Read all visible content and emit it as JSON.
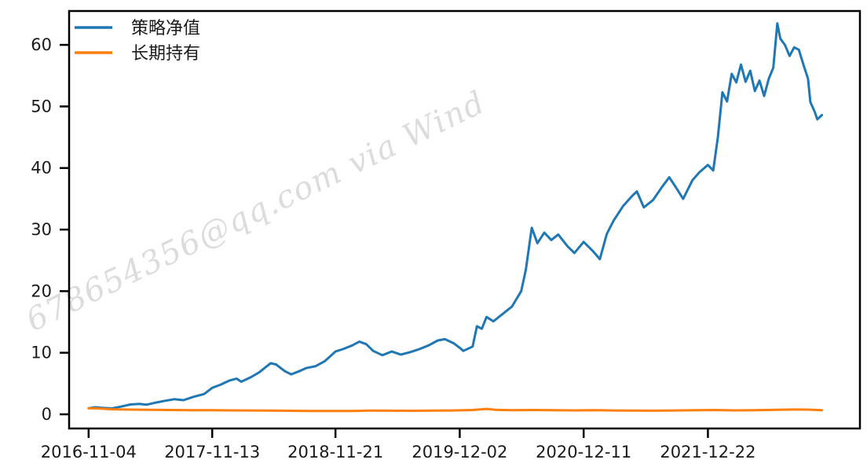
{
  "watermark": "678654356@qq.com via Wind",
  "background": "#ffffff",
  "frame_color": "#000000",
  "chart_data": {
    "type": "line",
    "title": "",
    "grid": false,
    "legend_position": "upper-left",
    "x_axis": {
      "tick_labels": [
        "2016-11-04",
        "2017-11-13",
        "2018-11-21",
        "2019-12-02",
        "2020-12-11",
        "2021-12-22"
      ],
      "lim": [
        "2016-09-06",
        "2023-03-27"
      ]
    },
    "y_axis": {
      "ticks": [
        0,
        10,
        20,
        30,
        40,
        50,
        60
      ],
      "lim": [
        -2.3,
        65.5
      ]
    },
    "legend": [
      {
        "name": "策略净值",
        "color": "#1f77b4"
      },
      {
        "name": "长期持有",
        "color": "#ff7f0e"
      }
    ],
    "series": [
      {
        "name": "策略净值",
        "color": "#1f77b4",
        "points": [
          [
            "2016-11-04",
            1.0
          ],
          [
            "2016-11-25",
            1.15
          ],
          [
            "2016-12-16",
            1.05
          ],
          [
            "2017-01-13",
            0.95
          ],
          [
            "2017-02-10",
            1.25
          ],
          [
            "2017-03-10",
            1.6
          ],
          [
            "2017-04-07",
            1.7
          ],
          [
            "2017-04-28",
            1.55
          ],
          [
            "2017-05-26",
            1.9
          ],
          [
            "2017-06-23",
            2.2
          ],
          [
            "2017-07-21",
            2.45
          ],
          [
            "2017-08-18",
            2.3
          ],
          [
            "2017-09-15",
            2.8
          ],
          [
            "2017-10-20",
            3.3
          ],
          [
            "2017-11-13",
            4.3
          ],
          [
            "2017-12-08",
            4.8
          ],
          [
            "2018-01-05",
            5.5
          ],
          [
            "2018-01-26",
            5.8
          ],
          [
            "2018-02-09",
            5.3
          ],
          [
            "2018-03-09",
            6.0
          ],
          [
            "2018-04-04",
            6.8
          ],
          [
            "2018-04-27",
            7.8
          ],
          [
            "2018-05-09",
            8.3
          ],
          [
            "2018-05-25",
            8.1
          ],
          [
            "2018-06-21",
            7.0
          ],
          [
            "2018-07-10",
            6.5
          ],
          [
            "2018-08-03",
            7.0
          ],
          [
            "2018-08-24",
            7.5
          ],
          [
            "2018-09-21",
            7.8
          ],
          [
            "2018-10-19",
            8.6
          ],
          [
            "2018-11-21",
            10.2
          ],
          [
            "2018-12-14",
            10.6
          ],
          [
            "2019-01-11",
            11.2
          ],
          [
            "2019-02-01",
            11.8
          ],
          [
            "2019-02-22",
            11.4
          ],
          [
            "2019-03-15",
            10.3
          ],
          [
            "2019-04-12",
            9.6
          ],
          [
            "2019-05-10",
            10.2
          ],
          [
            "2019-06-07",
            9.7
          ],
          [
            "2019-07-05",
            10.1
          ],
          [
            "2019-08-02",
            10.6
          ],
          [
            "2019-08-30",
            11.2
          ],
          [
            "2019-09-27",
            12.0
          ],
          [
            "2019-10-18",
            12.2
          ],
          [
            "2019-11-15",
            11.5
          ],
          [
            "2019-12-02",
            10.8
          ],
          [
            "2019-12-13",
            10.3
          ],
          [
            "2020-01-10",
            11.0
          ],
          [
            "2020-01-23",
            14.3
          ],
          [
            "2020-02-07",
            13.9
          ],
          [
            "2020-02-21",
            15.8
          ],
          [
            "2020-03-13",
            15.1
          ],
          [
            "2020-04-10",
            16.3
          ],
          [
            "2020-05-08",
            17.5
          ],
          [
            "2020-06-05",
            20.0
          ],
          [
            "2020-06-19",
            23.5
          ],
          [
            "2020-07-07",
            30.3
          ],
          [
            "2020-07-24",
            27.8
          ],
          [
            "2020-08-14",
            29.5
          ],
          [
            "2020-09-04",
            28.3
          ],
          [
            "2020-09-25",
            29.2
          ],
          [
            "2020-10-23",
            27.3
          ],
          [
            "2020-11-13",
            26.2
          ],
          [
            "2020-12-11",
            28.0
          ],
          [
            "2021-01-08",
            26.5
          ],
          [
            "2021-01-29",
            25.2
          ],
          [
            "2021-02-19",
            29.3
          ],
          [
            "2021-03-12",
            31.5
          ],
          [
            "2021-04-09",
            33.8
          ],
          [
            "2021-05-07",
            35.5
          ],
          [
            "2021-05-21",
            36.2
          ],
          [
            "2021-06-11",
            33.6
          ],
          [
            "2021-07-09",
            34.8
          ],
          [
            "2021-08-06",
            37.0
          ],
          [
            "2021-08-27",
            38.5
          ],
          [
            "2021-09-17",
            36.8
          ],
          [
            "2021-10-08",
            35.0
          ],
          [
            "2021-11-05",
            38.0
          ],
          [
            "2021-11-26",
            39.3
          ],
          [
            "2021-12-22",
            40.5
          ],
          [
            "2022-01-07",
            39.6
          ],
          [
            "2022-01-21",
            45.0
          ],
          [
            "2022-02-04",
            52.3
          ],
          [
            "2022-02-18",
            50.8
          ],
          [
            "2022-03-04",
            55.3
          ],
          [
            "2022-03-18",
            53.9
          ],
          [
            "2022-04-01",
            56.8
          ],
          [
            "2022-04-15",
            54.0
          ],
          [
            "2022-04-29",
            55.8
          ],
          [
            "2022-05-13",
            52.5
          ],
          [
            "2022-05-27",
            54.2
          ],
          [
            "2022-06-10",
            51.7
          ],
          [
            "2022-06-24",
            54.5
          ],
          [
            "2022-07-08",
            56.3
          ],
          [
            "2022-07-20",
            63.5
          ],
          [
            "2022-07-29",
            61.0
          ],
          [
            "2022-08-12",
            60.0
          ],
          [
            "2022-08-26",
            58.2
          ],
          [
            "2022-09-09",
            59.6
          ],
          [
            "2022-09-23",
            59.2
          ],
          [
            "2022-10-07",
            56.8
          ],
          [
            "2022-10-21",
            54.5
          ],
          [
            "2022-10-28",
            50.7
          ],
          [
            "2022-11-11",
            49.0
          ],
          [
            "2022-11-18",
            47.9
          ],
          [
            "2022-12-02",
            48.6
          ]
        ]
      },
      {
        "name": "长期持有",
        "color": "#ff7f0e",
        "points": [
          [
            "2016-11-04",
            1.0
          ],
          [
            "2016-12-02",
            0.95
          ],
          [
            "2017-01-13",
            0.82
          ],
          [
            "2017-03-10",
            0.76
          ],
          [
            "2017-05-12",
            0.73
          ],
          [
            "2017-07-14",
            0.7
          ],
          [
            "2017-09-15",
            0.68
          ],
          [
            "2017-11-13",
            0.66
          ],
          [
            "2018-01-12",
            0.64
          ],
          [
            "2018-03-09",
            0.62
          ],
          [
            "2018-05-11",
            0.6
          ],
          [
            "2018-07-13",
            0.57
          ],
          [
            "2018-09-14",
            0.55
          ],
          [
            "2018-11-21",
            0.54
          ],
          [
            "2019-01-11",
            0.55
          ],
          [
            "2019-03-08",
            0.6
          ],
          [
            "2019-05-10",
            0.58
          ],
          [
            "2019-07-12",
            0.57
          ],
          [
            "2019-09-13",
            0.6
          ],
          [
            "2019-11-08",
            0.62
          ],
          [
            "2020-01-10",
            0.7
          ],
          [
            "2020-02-21",
            0.88
          ],
          [
            "2020-03-20",
            0.72
          ],
          [
            "2020-05-08",
            0.68
          ],
          [
            "2020-07-10",
            0.7
          ],
          [
            "2020-09-11",
            0.66
          ],
          [
            "2020-11-13",
            0.64
          ],
          [
            "2021-01-08",
            0.68
          ],
          [
            "2021-03-12",
            0.63
          ],
          [
            "2021-05-14",
            0.6
          ],
          [
            "2021-07-09",
            0.58
          ],
          [
            "2021-09-10",
            0.62
          ],
          [
            "2021-11-12",
            0.66
          ],
          [
            "2022-01-14",
            0.7
          ],
          [
            "2022-03-11",
            0.64
          ],
          [
            "2022-05-13",
            0.66
          ],
          [
            "2022-07-15",
            0.74
          ],
          [
            "2022-09-09",
            0.78
          ],
          [
            "2022-10-21",
            0.76
          ],
          [
            "2022-12-02",
            0.68
          ]
        ]
      }
    ]
  }
}
